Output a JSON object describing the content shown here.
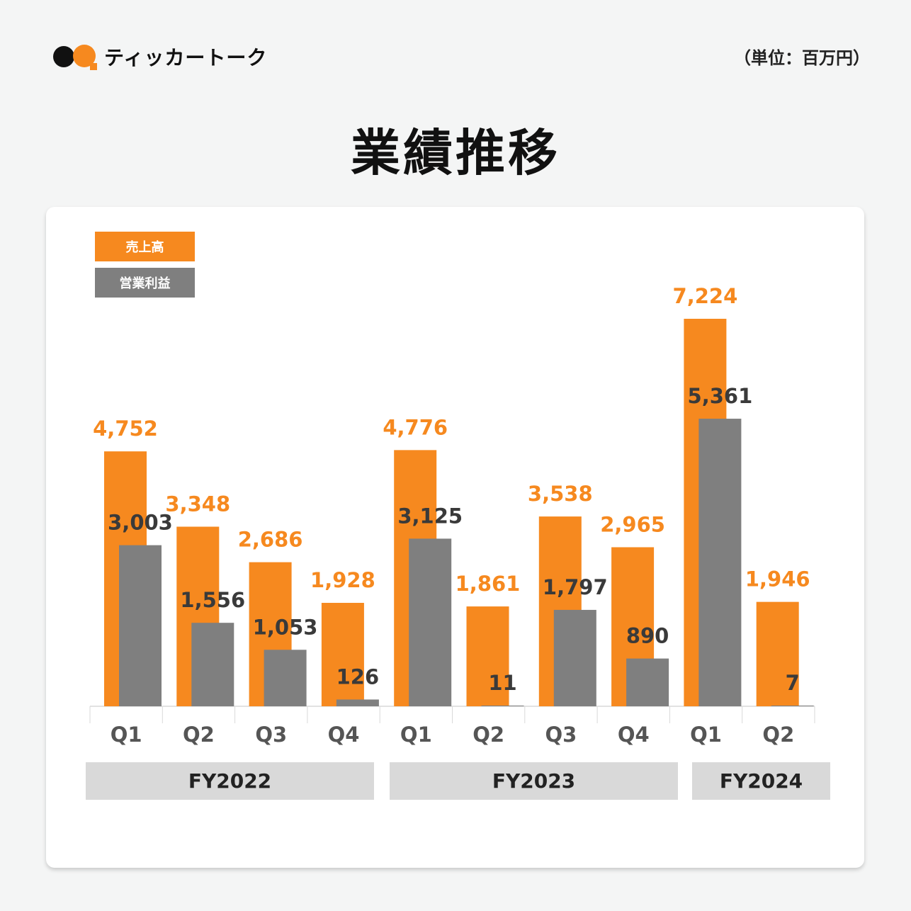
{
  "logo": {
    "name": "ティッカートーク"
  },
  "unit": "（単位：百万円）",
  "title": "業績推移",
  "colors": {
    "revenue": "#f6891f",
    "profit": "#7f7f7f",
    "revenue_label": "#f6891f",
    "profit_label": "#3a3a3a"
  },
  "chart_data": {
    "type": "bar",
    "title": "業績推移",
    "ylabel": "百万円",
    "categories": [
      "Q1",
      "Q2",
      "Q3",
      "Q4",
      "Q1",
      "Q2",
      "Q3",
      "Q4",
      "Q1",
      "Q2"
    ],
    "groups": [
      {
        "label": "FY2022",
        "count": 4
      },
      {
        "label": "FY2023",
        "count": 4
      },
      {
        "label": "FY2024",
        "count": 2
      }
    ],
    "series": [
      {
        "name": "売上高",
        "values": [
          4752,
          3348,
          2686,
          1928,
          4776,
          1861,
          3538,
          2965,
          7224,
          1946
        ]
      },
      {
        "name": "営業利益",
        "values": [
          3003,
          1556,
          1053,
          126,
          3125,
          11,
          1797,
          890,
          5361,
          7
        ]
      }
    ],
    "legend": "top-left",
    "grid": false
  }
}
